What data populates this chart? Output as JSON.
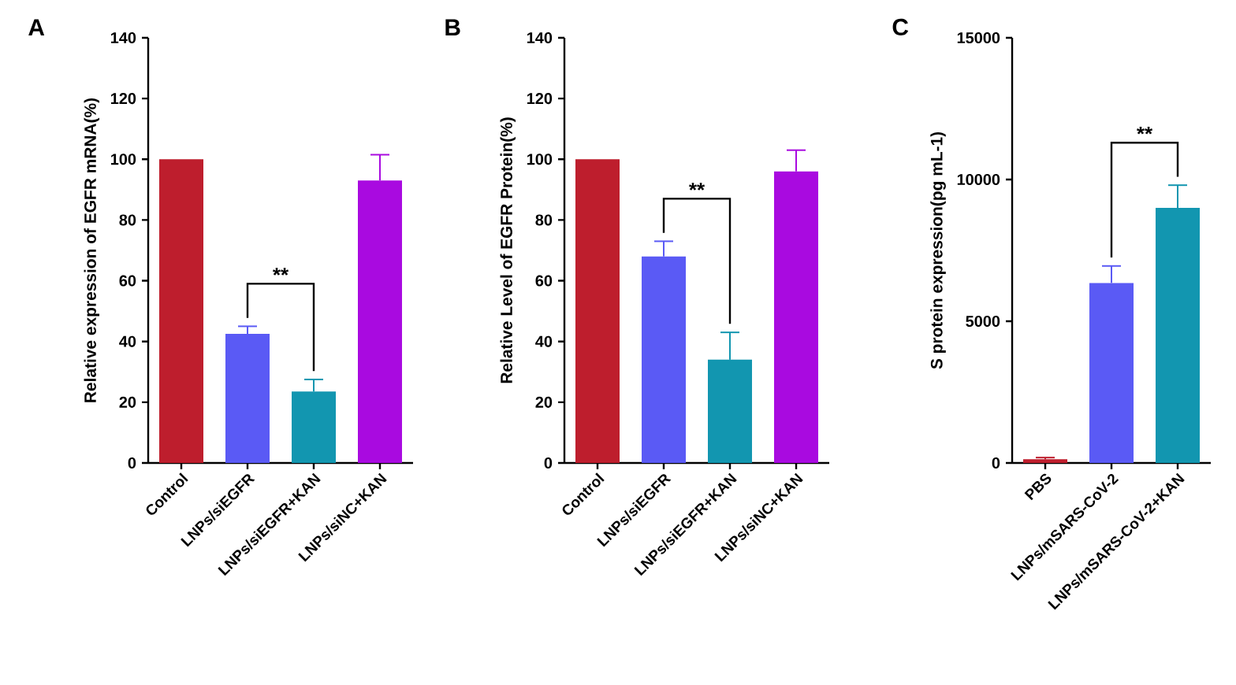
{
  "chart_data": [
    {
      "type": "bar",
      "title": "A",
      "ylabel": "Relative expression of EGFR mRNA(%)",
      "categories": [
        "Control",
        "LNPs/siEGFR",
        "LNPs/siEGFR+KAN",
        "LNPs/siNC+KAN"
      ],
      "values": [
        100,
        42.5,
        23.5,
        93
      ],
      "errors": [
        null,
        2.5,
        4,
        8.5
      ],
      "colors": [
        "#be1e2d",
        "#5a5af5",
        "#1296b0",
        "#a90ae0"
      ],
      "ylim": [
        0,
        140
      ],
      "yticks": [
        0,
        20,
        40,
        60,
        80,
        100,
        120,
        140
      ],
      "annotations": [
        "**"
      ]
    },
    {
      "type": "bar",
      "title": "B",
      "ylabel": "Relative Level of EGFR Protein(%)",
      "categories": [
        "Control",
        "LNPs/siEGFR",
        "LNPs/siEGFR+KAN",
        "LNPs/siNC+KAN"
      ],
      "values": [
        100,
        68,
        34,
        96
      ],
      "errors": [
        null,
        5,
        9,
        7
      ],
      "colors": [
        "#be1e2d",
        "#5a5af5",
        "#1296b0",
        "#a90ae0"
      ],
      "ylim": [
        0,
        140
      ],
      "yticks": [
        0,
        20,
        40,
        60,
        80,
        100,
        120,
        140
      ],
      "annotations": [
        "**"
      ]
    },
    {
      "type": "bar",
      "title": "C",
      "ylabel": "S protein expression(pg mL-1)",
      "categories": [
        "PBS",
        "LNPs/mSARS-CoV-2",
        "LNPs/mSARS-CoV-2+KAN"
      ],
      "values": [
        130,
        6350,
        9000
      ],
      "errors": [
        60,
        600,
        800
      ],
      "colors": [
        "#be1e2d",
        "#5a5af5",
        "#1296b0"
      ],
      "ylim": [
        0,
        15000
      ],
      "yticks": [
        0,
        5000,
        10000,
        15000
      ],
      "annotations": [
        "**"
      ]
    }
  ]
}
